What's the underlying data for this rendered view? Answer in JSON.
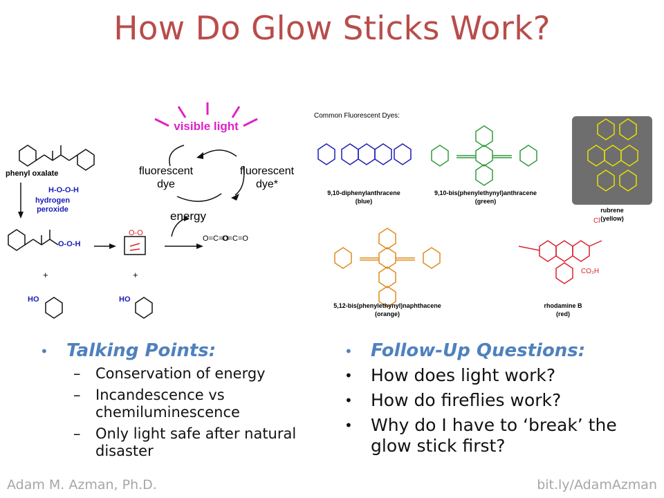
{
  "slide": {
    "title": "How Do Glow Sticks Work?"
  },
  "scheme": {
    "visible_light": "visible light",
    "fluorescent_dye": [
      "fluorescent",
      "dye"
    ],
    "fluorescent_dye_excited": [
      "fluorescent",
      "dye*"
    ],
    "energy": "energy",
    "phenyl_oxalate": "phenyl oxalate",
    "hydrogen_peroxide": [
      "hydrogen",
      "peroxide"
    ],
    "plus": "+"
  },
  "dyes": {
    "header": "Common Fluorescent Dyes:",
    "items": [
      {
        "name": "9,10-diphenylanthracene",
        "color_word": "(blue)",
        "color": "#1a1ab8"
      },
      {
        "name": "9,10-bis(phenylethynyl)anthracene",
        "color_word": "(green)",
        "color": "#2e9a3a"
      },
      {
        "name": "rubrene",
        "color_word": "(yellow)",
        "color": "#e8e000"
      },
      {
        "name": "5,12-bis(phenylethynyl)naphthacene",
        "color_word": "(orange)",
        "color": "#e08a1c"
      },
      {
        "name": "rhodamine B",
        "color_word": "(red)",
        "color": "#d8222a"
      }
    ]
  },
  "talking_points": {
    "heading": "Talking Points:",
    "items": [
      "Conservation of energy",
      "Incandescence vs chemiluminescence",
      "Only light safe after natural disaster"
    ]
  },
  "follow_up": {
    "heading": "Follow-Up Questions:",
    "items": [
      "How does light work?",
      "How do fireflies work?",
      "Why do I have to ‘break’ the glow stick first?"
    ]
  },
  "footer": {
    "author": "Adam M. Azman, Ph.D.",
    "link": "bit.ly/AdamAzman"
  },
  "colors": {
    "title": "#b84d4b",
    "accent": "#4f81bd",
    "magenta": "#e020c8",
    "footer": "#a6a6a6"
  }
}
